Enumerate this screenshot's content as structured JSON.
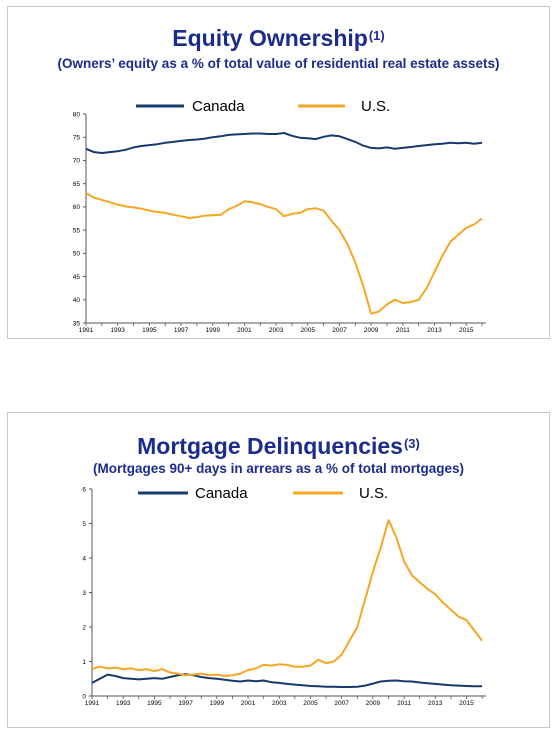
{
  "colors": {
    "canada": "#173a6e",
    "us": "#f5a623",
    "title": "#1c2c8c",
    "axis": "#555555"
  },
  "chart_data": [
    {
      "type": "line",
      "title": "Equity Ownership",
      "title_note": "(1)",
      "subtitle": "(Owners’ equity as a % of total value of residential real estate assets)",
      "ylim": [
        35,
        80
      ],
      "yticks": [
        "35",
        "40",
        "45",
        "50",
        "55",
        "60",
        "65",
        "70",
        "75",
        "80"
      ],
      "xlim": [
        1991,
        2016.25
      ],
      "xticks": [
        "1991",
        "1993",
        "1995",
        "1997",
        "1999",
        "2001",
        "2003",
        "2005",
        "2007",
        "2009",
        "2011",
        "2013",
        "2015"
      ],
      "legend_position": "top",
      "grid": false,
      "series": [
        {
          "name": "Canada",
          "color_key": "canada",
          "x": [
            1991,
            1991.5,
            1992,
            1992.5,
            1993,
            1993.5,
            1994,
            1994.5,
            1995,
            1995.5,
            1996,
            1996.5,
            1997,
            1997.5,
            1998,
            1998.5,
            1999,
            1999.5,
            2000,
            2000.5,
            2001,
            2001.5,
            2002,
            2002.5,
            2003,
            2003.5,
            2004,
            2004.5,
            2005,
            2005.5,
            2006,
            2006.5,
            2007,
            2007.5,
            2008,
            2008.5,
            2009,
            2009.5,
            2010,
            2010.5,
            2011,
            2011.5,
            2012,
            2012.5,
            2013,
            2013.5,
            2014,
            2014.5,
            2015,
            2015.5,
            2016
          ],
          "values": [
            72.5,
            71.8,
            71.6,
            71.8,
            72.0,
            72.3,
            72.8,
            73.1,
            73.3,
            73.5,
            73.8,
            74.0,
            74.2,
            74.4,
            74.5,
            74.7,
            75.0,
            75.2,
            75.5,
            75.6,
            75.7,
            75.8,
            75.8,
            75.7,
            75.7,
            75.9,
            75.3,
            74.9,
            74.8,
            74.6,
            75.1,
            75.4,
            75.2,
            74.6,
            74.0,
            73.2,
            72.7,
            72.6,
            72.8,
            72.5,
            72.7,
            72.9,
            73.1,
            73.3,
            73.5,
            73.6,
            73.8,
            73.7,
            73.8,
            73.6,
            73.8
          ]
        },
        {
          "name": "U.S.",
          "color_key": "us",
          "x": [
            1991,
            1991.5,
            1992,
            1992.5,
            1993,
            1993.5,
            1994,
            1994.5,
            1995,
            1995.5,
            1996,
            1996.5,
            1997,
            1997.5,
            1998,
            1998.5,
            1999,
            1999.5,
            2000,
            2000.5,
            2001,
            2001.5,
            2002,
            2002.5,
            2003,
            2003.5,
            2004,
            2004.5,
            2005,
            2005.5,
            2006,
            2006.5,
            2007,
            2007.5,
            2008,
            2008.5,
            2009,
            2009.5,
            2010,
            2010.5,
            2011,
            2011.5,
            2012,
            2012.5,
            2013,
            2013.5,
            2014,
            2014.5,
            2015,
            2015.5,
            2016
          ],
          "values": [
            63.0,
            62.0,
            61.5,
            61.0,
            60.5,
            60.1,
            59.9,
            59.6,
            59.2,
            58.9,
            58.7,
            58.3,
            58.0,
            57.6,
            57.8,
            58.1,
            58.2,
            58.3,
            59.5,
            60.2,
            61.2,
            61.0,
            60.6,
            60.0,
            59.5,
            58.0,
            58.5,
            58.7,
            59.5,
            59.7,
            59.2,
            57.0,
            55.0,
            52.0,
            48.0,
            43.0,
            37.0,
            37.5,
            39.0,
            40.0,
            39.3,
            39.5,
            40.0,
            42.5,
            46.0,
            49.5,
            52.5,
            54.0,
            55.5,
            56.2,
            57.5
          ]
        }
      ]
    },
    {
      "type": "line",
      "title": "Mortgage Delinquencies",
      "title_note": "(3)",
      "subtitle": "(Mortgages 90+ days in arrears as a % of total mortgages)",
      "ylim": [
        0,
        6
      ],
      "yticks": [
        "0",
        "1",
        "2",
        "3",
        "4",
        "5",
        "6"
      ],
      "xlim": [
        1991,
        2016.25
      ],
      "xticks": [
        "1991",
        "1993",
        "1995",
        "1997",
        "1999",
        "2001",
        "2003",
        "2005",
        "2007",
        "2009",
        "2011",
        "2013",
        "2015"
      ],
      "legend_position": "top",
      "grid": false,
      "series": [
        {
          "name": "Canada",
          "color_key": "canada",
          "x": [
            1991,
            1991.5,
            1992,
            1992.5,
            1993,
            1993.5,
            1994,
            1994.5,
            1995,
            1995.5,
            1996,
            1996.5,
            1997,
            1997.5,
            1998,
            1998.5,
            1999,
            1999.5,
            2000,
            2000.5,
            2001,
            2001.5,
            2002,
            2002.5,
            2003,
            2003.5,
            2004,
            2004.5,
            2005,
            2005.5,
            2006,
            2006.5,
            2007,
            2007.5,
            2008,
            2008.5,
            2009,
            2009.5,
            2010,
            2010.5,
            2011,
            2011.5,
            2012,
            2012.5,
            2013,
            2013.5,
            2014,
            2014.5,
            2015,
            2015.5,
            2016
          ],
          "values": [
            0.38,
            0.5,
            0.62,
            0.58,
            0.52,
            0.5,
            0.48,
            0.5,
            0.52,
            0.5,
            0.55,
            0.6,
            0.63,
            0.6,
            0.55,
            0.52,
            0.5,
            0.47,
            0.44,
            0.42,
            0.45,
            0.43,
            0.45,
            0.4,
            0.38,
            0.35,
            0.33,
            0.31,
            0.29,
            0.28,
            0.27,
            0.27,
            0.26,
            0.26,
            0.27,
            0.3,
            0.36,
            0.42,
            0.44,
            0.45,
            0.43,
            0.42,
            0.39,
            0.37,
            0.35,
            0.33,
            0.31,
            0.3,
            0.29,
            0.28,
            0.28
          ]
        },
        {
          "name": "U.S.",
          "color_key": "us",
          "x": [
            1991,
            1991.5,
            1992,
            1992.5,
            1993,
            1993.5,
            1994,
            1994.5,
            1995,
            1995.5,
            1996,
            1996.5,
            1997,
            1997.5,
            1998,
            1998.5,
            1999,
            1999.5,
            2000,
            2000.5,
            2001,
            2001.5,
            2002,
            2002.5,
            2003,
            2003.5,
            2004,
            2004.5,
            2005,
            2005.5,
            2006,
            2006.5,
            2007,
            2007.5,
            2008,
            2008.5,
            2009,
            2009.5,
            2010,
            2010.5,
            2011,
            2011.5,
            2012,
            2012.5,
            2013,
            2013.5,
            2014,
            2014.5,
            2015,
            2015.5,
            2016
          ],
          "values": [
            0.78,
            0.85,
            0.8,
            0.82,
            0.78,
            0.8,
            0.75,
            0.78,
            0.72,
            0.78,
            0.68,
            0.65,
            0.6,
            0.62,
            0.65,
            0.6,
            0.62,
            0.58,
            0.6,
            0.65,
            0.75,
            0.8,
            0.9,
            0.88,
            0.92,
            0.9,
            0.85,
            0.85,
            0.88,
            1.05,
            0.95,
            1.0,
            1.2,
            1.6,
            2.0,
            2.8,
            3.6,
            4.3,
            5.1,
            4.6,
            3.9,
            3.5,
            3.3,
            3.1,
            2.95,
            2.7,
            2.5,
            2.3,
            2.2,
            1.9,
            1.6
          ]
        }
      ]
    }
  ]
}
